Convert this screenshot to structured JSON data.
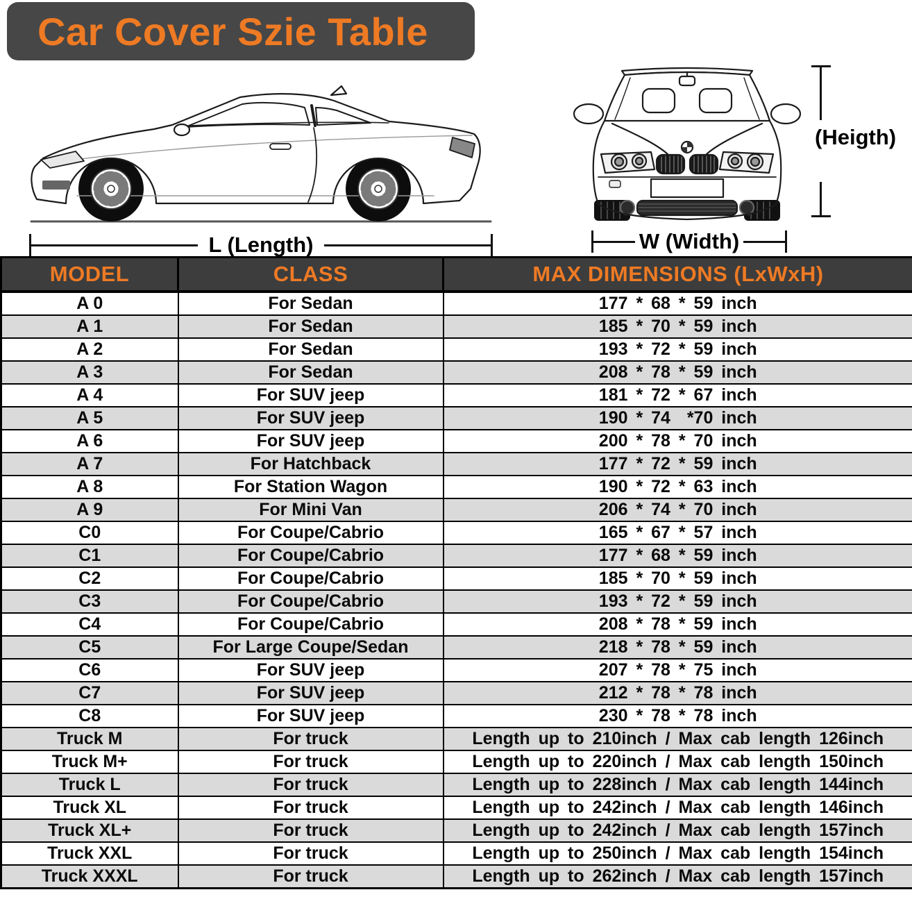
{
  "title": "Car Cover Szie Table",
  "diagram": {
    "length_label": "L (Length)",
    "width_label": "W (Width)",
    "height_label": "(Heigth)"
  },
  "chart_data": {
    "type": "table",
    "title": "Car Cover Szie Table",
    "columns": [
      "MODEL",
      "CLASS",
      "MAX DIMENSIONS (LxWxH)"
    ],
    "rows": [
      [
        "A 0",
        "For Sedan",
        "177 * 68 * 59 inch"
      ],
      [
        "A 1",
        "For Sedan",
        "185 * 70 * 59 inch"
      ],
      [
        "A 2",
        "For Sedan",
        "193 * 72 * 59 inch"
      ],
      [
        "A 3",
        "For Sedan",
        "208 * 78 * 59 inch"
      ],
      [
        "A 4",
        "For SUV jeep",
        "181 * 72 * 67 inch"
      ],
      [
        "A 5",
        "For SUV jeep",
        "190 * 74  *70 inch"
      ],
      [
        "A 6",
        "For SUV jeep",
        "200 * 78 * 70 inch"
      ],
      [
        "A 7",
        "For Hatchback",
        "177 * 72 * 59 inch"
      ],
      [
        "A 8",
        "For Station Wagon",
        "190 * 72 * 63 inch"
      ],
      [
        "A 9",
        "For Mini Van",
        "206 * 74 * 70 inch"
      ],
      [
        "C0",
        "For Coupe/Cabrio",
        "165 * 67 * 57 inch"
      ],
      [
        "C1",
        "For Coupe/Cabrio",
        "177 * 68 * 59 inch"
      ],
      [
        "C2",
        "For Coupe/Cabrio",
        "185 * 70 * 59 inch"
      ],
      [
        "C3",
        "For Coupe/Cabrio",
        "193 * 72 * 59 inch"
      ],
      [
        "C4",
        "For Coupe/Cabrio",
        "208 * 78 * 59 inch"
      ],
      [
        "C5",
        "For Large Coupe/Sedan",
        "218 * 78 * 59 inch"
      ],
      [
        "C6",
        "For SUV jeep",
        "207 * 78 * 75 inch"
      ],
      [
        "C7",
        "For SUV jeep",
        "212 * 78 * 78 inch"
      ],
      [
        "C8",
        "For SUV jeep",
        "230 * 78 * 78 inch"
      ],
      [
        "Truck M",
        "For truck",
        "Length up to 210inch / Max cab length 126inch"
      ],
      [
        "Truck M+",
        "For truck",
        "Length up to 220inch / Max cab length 150inch"
      ],
      [
        "Truck L",
        "For truck",
        "Length up to 228inch / Max cab length 144inch"
      ],
      [
        "Truck XL",
        "For truck",
        "Length up to 242inch / Max cab length 146inch"
      ],
      [
        "Truck XL+",
        "For truck",
        "Length up to 242inch / Max cab length 157inch"
      ],
      [
        "Truck XXL",
        "For truck",
        "Length up to 250inch / Max cab length 154inch"
      ],
      [
        "Truck XXXL",
        "For truck",
        "Length up to 262inch / Max cab length 157inch"
      ]
    ]
  },
  "colors": {
    "accent_orange": "#EE7A24",
    "panel_dark": "#474747",
    "header_dark": "#3D3D3D",
    "row_alt_gray": "#DADADA",
    "border_black": "#000000"
  }
}
